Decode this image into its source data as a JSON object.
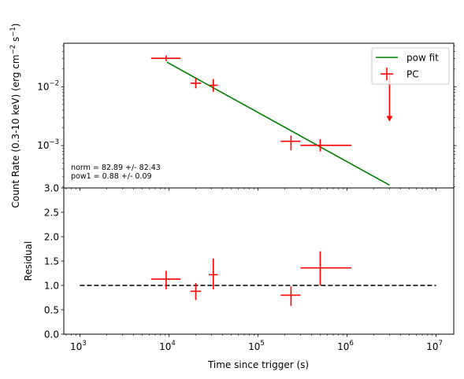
{
  "chart_data": [
    {
      "type": "scatter",
      "panel": "top",
      "xscale": "log",
      "yscale": "log",
      "xlim": [
        660,
        15800000
      ],
      "ylim": [
        0.00019,
        0.055
      ],
      "ylabel": "Count Rate (0.3-10 keV) (erg cm$^{-2}$ s$^{-1}$)",
      "ylabel_parts": {
        "main": "Count Rate (0.3-10 keV) (erg cm",
        "sup1": "−2",
        "mid": " s",
        "sup2": "−1",
        "end": ")"
      },
      "yticks": [
        {
          "value": 0.01,
          "base": "10",
          "exp": "−2"
        },
        {
          "value": 0.001,
          "base": "10",
          "exp": "−3"
        }
      ],
      "series": [
        {
          "name": "pow fit",
          "type": "line",
          "color": "#008000",
          "x": [
            9500,
            3000000
          ],
          "y": [
            0.0262,
            0.000212
          ]
        },
        {
          "name": "PC",
          "type": "errorbar",
          "color": "#ff0000",
          "points": [
            {
              "x": 9300,
              "xlo": 6300,
              "xhi": 13500,
              "y": 0.0305,
              "ylo": 0.0273,
              "yhi": 0.034
            },
            {
              "x": 20000,
              "xlo": 17500,
              "xhi": 23000,
              "y": 0.0115,
              "ylo": 0.0094,
              "yhi": 0.014
            },
            {
              "x": 31500,
              "xlo": 28000,
              "xhi": 35500,
              "y": 0.0106,
              "ylo": 0.0082,
              "yhi": 0.0135
            },
            {
              "x": 235000,
              "xlo": 180000,
              "xhi": 300000,
              "y": 0.00118,
              "ylo": 0.00083,
              "yhi": 0.00148
            },
            {
              "x": 500000,
              "xlo": 300000,
              "xhi": 1120000,
              "y": 0.00101,
              "ylo": 0.00079,
              "yhi": 0.00128
            }
          ],
          "upper_limits": [
            {
              "x": 3000000,
              "y": 0.0165,
              "arrow_to": 0.00265
            }
          ]
        }
      ],
      "annotations": [
        "norm = 82.89 +/- 82.43",
        "pow1 = 0.88 +/- 0.09"
      ],
      "legend": {
        "placement": "top-right",
        "entries": [
          "pow fit",
          "PC"
        ]
      }
    },
    {
      "type": "scatter",
      "panel": "bottom",
      "xscale": "log",
      "yscale": "linear",
      "xlim": [
        660,
        15800000
      ],
      "ylim": [
        0.0,
        3.0
      ],
      "xlabel": "Time since trigger (s)",
      "ylabel": "Residual",
      "xticks": [
        {
          "value": 1000,
          "base": "10",
          "exp": "3"
        },
        {
          "value": 10000,
          "base": "10",
          "exp": "4"
        },
        {
          "value": 100000,
          "base": "10",
          "exp": "5"
        },
        {
          "value": 1000000,
          "base": "10",
          "exp": "6"
        },
        {
          "value": 10000000,
          "base": "10",
          "exp": "7"
        }
      ],
      "yticks": [
        "0.0",
        "0.5",
        "1.0",
        "1.5",
        "2.0",
        "2.5",
        "3.0"
      ],
      "reference_line": {
        "y": 1.0,
        "x": [
          1000,
          10000000
        ],
        "style": "dashed",
        "color": "#000000"
      },
      "series": [
        {
          "name": "PC",
          "type": "errorbar",
          "color": "#ff0000",
          "points": [
            {
              "x": 9300,
              "xlo": 6300,
              "xhi": 13500,
              "y": 1.13,
              "ylo": 0.92,
              "yhi": 1.3
            },
            {
              "x": 20000,
              "xlo": 17500,
              "xhi": 23000,
              "y": 0.88,
              "ylo": 0.7,
              "yhi": 1.05
            },
            {
              "x": 31500,
              "xlo": 28000,
              "xhi": 35500,
              "y": 1.22,
              "ylo": 0.92,
              "yhi": 1.55
            },
            {
              "x": 235000,
              "xlo": 180000,
              "xhi": 300000,
              "y": 0.8,
              "ylo": 0.58,
              "yhi": 0.98
            },
            {
              "x": 500000,
              "xlo": 300000,
              "xhi": 1120000,
              "y": 1.36,
              "ylo": 1.0,
              "yhi": 1.7
            }
          ]
        }
      ]
    }
  ]
}
